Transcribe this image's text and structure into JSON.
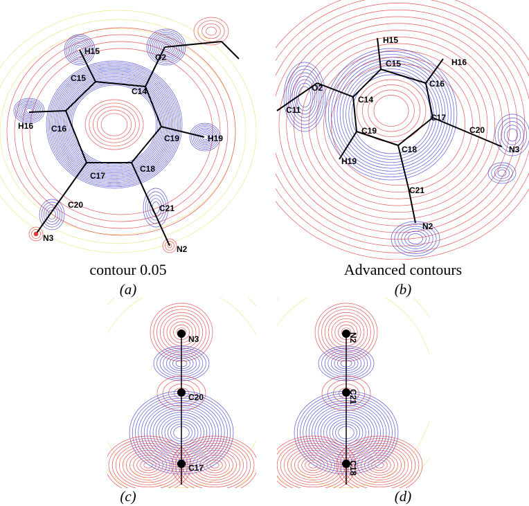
{
  "panels": [
    {
      "caption": "contour 0.05",
      "tag": "(a)",
      "atoms": [
        "H15",
        "O2",
        "C15",
        "C14",
        "C16",
        "H16",
        "C19",
        "H19",
        "C17",
        "C18",
        "C20",
        "C21",
        "N3",
        "N2"
      ]
    },
    {
      "caption": "Advanced contours",
      "tag": "(b)",
      "atoms": [
        "H15",
        "C15",
        "H16",
        "C16",
        "O2",
        "C11",
        "C14",
        "C17",
        "C20",
        "N3",
        "C19",
        "C18",
        "H19",
        "C21",
        "N2"
      ]
    },
    {
      "tag": "(c)",
      "atoms": [
        "N3",
        "C20",
        "C17"
      ]
    },
    {
      "tag": "(d)",
      "atoms": [
        "N2",
        "C21",
        "C18"
      ]
    }
  ]
}
